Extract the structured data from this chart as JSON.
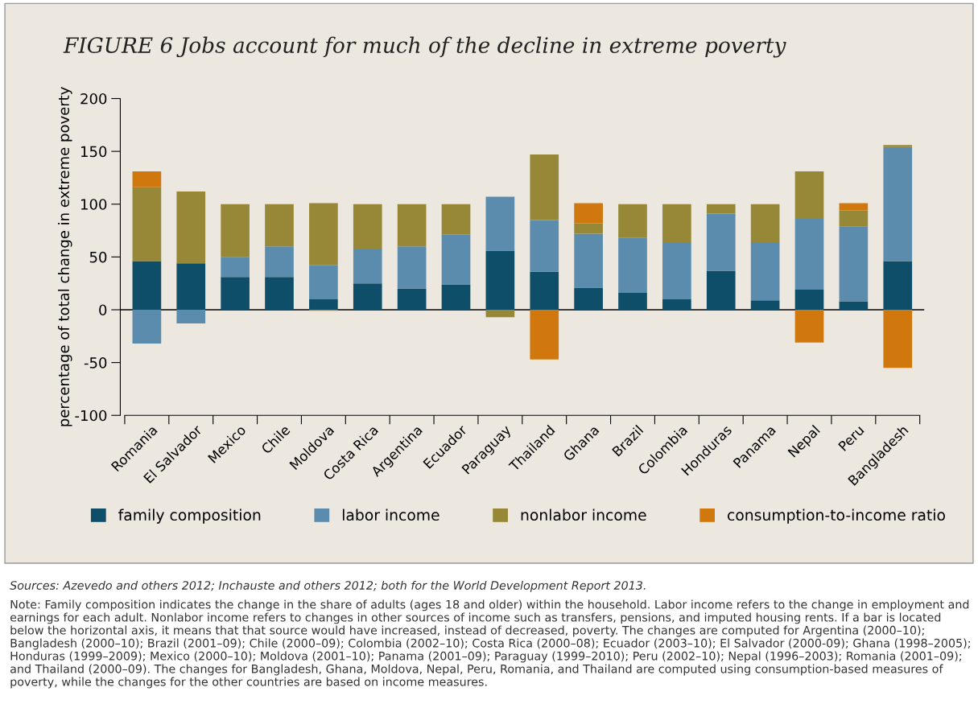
{
  "chart_data": {
    "type": "bar",
    "stacked": true,
    "title": "FIGURE 6 Jobs account for much of the decline in extreme poverty",
    "ylabel": "percentage of total change in extreme poverty",
    "categories": [
      "Romania",
      "El Salvador",
      "Mexico",
      "Chile",
      "Moldova",
      "Costa Rica",
      "Argentina",
      "Ecuador",
      "Paraguay",
      "Thailand",
      "Ghana",
      "Brazil",
      "Colombia",
      "Honduras",
      "Panama",
      "Nepal",
      "Peru",
      "Bangladesh"
    ],
    "series": [
      {
        "name": "family composition",
        "color": "#0f4e69",
        "values": [
          46,
          44,
          31,
          31,
          10,
          25,
          20,
          24,
          56,
          36,
          21,
          16,
          10,
          37,
          9,
          19,
          8,
          46
        ]
      },
      {
        "name": "labor income",
        "color": "#5b8bad",
        "values": [
          -32,
          -13,
          19,
          29,
          32,
          33,
          40,
          47,
          51,
          49,
          51,
          52,
          54,
          54,
          55,
          67,
          71,
          108
        ]
      },
      {
        "name": "nonlabor income",
        "color": "#968836",
        "values": [
          70,
          68,
          50,
          40,
          59,
          42,
          40,
          29,
          -7,
          62,
          10,
          32,
          36,
          9,
          36,
          45,
          15,
          2
        ]
      },
      {
        "name": "consumption-to-income ratio",
        "color": "#d0770e",
        "values": [
          15,
          null,
          null,
          null,
          -1,
          null,
          null,
          null,
          null,
          -47,
          19,
          null,
          null,
          null,
          null,
          -31,
          7,
          -55
        ]
      }
    ],
    "ylim": [
      -100,
      200
    ],
    "yticks": [
      -100,
      -50,
      0,
      50,
      100,
      150,
      200
    ],
    "ref_lines": [
      {
        "axis": "y",
        "value": 0,
        "color": "#000000"
      }
    ],
    "grid": false,
    "legend": "bottom",
    "annotations": [
      "Sources: Azevedo and others 2012; Inchauste and others 2012; both for the World Development Report 2013.",
      "Note: Family composition indicates the change in the share of adults (ages 18 and older) within the household. Labor income refers to the change in employment and earnings for each adult. Nonlabor income refers to changes in other sources of income such as transfers, pensions, and imputed housing rents. If a bar is located below the horizontal axis, it means that that source would have increased, instead of decreased, poverty. The changes are computed for Argentina (2000–10); Bangladesh (2000–10); Brazil (2001–09); Chile (2000–09); Colombia (2002–10); Costa Rica (2000–08); Ecuador (2003–10); El Salvador (2000-09); Ghana (1998–2005); Honduras (1999–2009); Mexico (2000–10); Moldova (2001–10); Panama (2001–09); Paraguay (1999–2010); Peru (2002–10); Nepal (1996–2003); Romania (2001–09); and Thailand (2000–09). The changes for Bangladesh, Ghana, Moldova, Nepal, Peru, Romania, and Thailand are computed using consumption-based measures of poverty, while the changes for the other countries are based on income measures."
    ]
  }
}
